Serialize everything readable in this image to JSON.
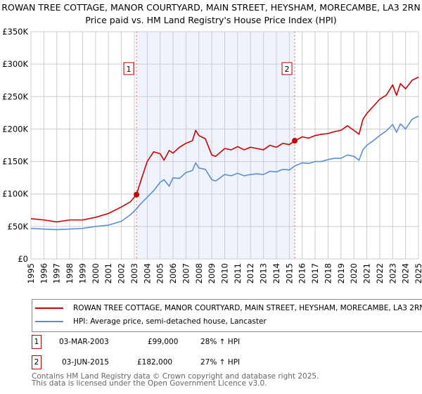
{
  "title": "ROWAN TREE COTTAGE, MANOR COURTYARD, MAIN STREET, HEYSHAM, MORECAMBE, LA3 2RN",
  "subtitle": "Price paid vs. HM Land Registry's House Price Index (HPI)",
  "chart_data": {
    "type": "line",
    "ylim": [
      0,
      350000
    ],
    "xlim": [
      1995,
      2025
    ],
    "yticks": [
      {
        "v": 0,
        "l": "£0"
      },
      {
        "v": 50000,
        "l": "£50K"
      },
      {
        "v": 100000,
        "l": "£100K"
      },
      {
        "v": 150000,
        "l": "£150K"
      },
      {
        "v": 200000,
        "l": "£200K"
      },
      {
        "v": 250000,
        "l": "£250K"
      },
      {
        "v": 300000,
        "l": "£300K"
      },
      {
        "v": 350000,
        "l": "£350K"
      }
    ],
    "xticks": [
      "1995",
      "1996",
      "1997",
      "1998",
      "1999",
      "2000",
      "2001",
      "2002",
      "2003",
      "2004",
      "2005",
      "2006",
      "2007",
      "2008",
      "2009",
      "2010",
      "2011",
      "2012",
      "2013",
      "2014",
      "2015",
      "2016",
      "2017",
      "2018",
      "2019",
      "2020",
      "2021",
      "2022",
      "2023",
      "2024",
      "2025"
    ],
    "grid": true,
    "series": [
      {
        "name": "ROWAN TREE COTTAGE, MANOR COURTYARD, MAIN STREET, HEYSHAM, MORECAMBE, LA3 2RN",
        "color": "#cc0000",
        "x": [
          1995,
          1996,
          1997,
          1998,
          1999,
          2000,
          2001,
          2002,
          2002.7,
          2003.17,
          2003.5,
          2004,
          2004.5,
          2005,
          2005.3,
          2005.7,
          2006,
          2006.5,
          2007,
          2007.5,
          2007.75,
          2008,
          2008.5,
          2009,
          2009.3,
          2010,
          2010.5,
          2011,
          2011.5,
          2012,
          2012.5,
          2013,
          2013.5,
          2014,
          2014.5,
          2015,
          2015.42,
          2016,
          2016.5,
          2017,
          2017.5,
          2018,
          2018.5,
          2019,
          2019.5,
          2020,
          2020.4,
          2020.7,
          2021,
          2021.5,
          2022,
          2022.5,
          2023,
          2023.3,
          2023.6,
          2024,
          2024.5,
          2025
        ],
        "y": [
          62000,
          60000,
          57000,
          60000,
          60000,
          64000,
          70000,
          80000,
          88000,
          99000,
          120000,
          150000,
          165000,
          162000,
          152000,
          167000,
          163000,
          172000,
          178000,
          182000,
          198000,
          190000,
          185000,
          160000,
          158000,
          170000,
          168000,
          173000,
          168000,
          172000,
          170000,
          168000,
          175000,
          172000,
          178000,
          176000,
          182000,
          188000,
          186000,
          190000,
          192000,
          193000,
          196000,
          198000,
          205000,
          198000,
          192000,
          215000,
          224000,
          235000,
          246000,
          252000,
          268000,
          252000,
          270000,
          262000,
          275000,
          280000
        ]
      },
      {
        "name": "HPI: Average price, semi-detached house, Lancaster",
        "color": "#5b8fd0",
        "x": [
          1995,
          1996,
          1997,
          1998,
          1999,
          2000,
          2001,
          2002,
          2002.7,
          2003.17,
          2003.5,
          2004,
          2004.5,
          2005,
          2005.3,
          2005.7,
          2006,
          2006.5,
          2007,
          2007.5,
          2007.75,
          2008,
          2008.5,
          2009,
          2009.3,
          2010,
          2010.5,
          2011,
          2011.5,
          2012,
          2012.5,
          2013,
          2013.5,
          2014,
          2014.5,
          2015,
          2015.42,
          2016,
          2016.5,
          2017,
          2017.5,
          2018,
          2018.5,
          2019,
          2019.5,
          2020,
          2020.4,
          2020.7,
          2021,
          2021.5,
          2022,
          2022.5,
          2023,
          2023.3,
          2023.6,
          2024,
          2024.5,
          2025
        ],
        "y": [
          47000,
          46000,
          45000,
          46000,
          47000,
          50000,
          52000,
          58000,
          68000,
          77000,
          85000,
          95000,
          105000,
          118000,
          122000,
          112000,
          125000,
          124000,
          133000,
          136000,
          148000,
          140000,
          138000,
          122000,
          120000,
          130000,
          128000,
          132000,
          128000,
          130000,
          131000,
          130000,
          135000,
          134000,
          138000,
          137000,
          143000,
          148000,
          147000,
          150000,
          150000,
          153000,
          155000,
          155000,
          160000,
          158000,
          152000,
          168000,
          175000,
          182000,
          190000,
          197000,
          207000,
          195000,
          208000,
          200000,
          215000,
          220000
        ]
      }
    ],
    "shaded_range": [
      2003.17,
      2015.42
    ],
    "annotations": [
      {
        "label": "1",
        "x": 2003.17,
        "y": 99000
      },
      {
        "label": "2",
        "x": 2015.42,
        "y": 182000
      }
    ]
  },
  "legend": [
    {
      "label": "ROWAN TREE COTTAGE, MANOR COURTYARD, MAIN STREET, HEYSHAM, MORECAMBE, LA3 2RN",
      "color": "#cc0000"
    },
    {
      "label": "HPI: Average price, semi-detached house, Lancaster",
      "color": "#5b8fd0"
    }
  ],
  "transactions": [
    {
      "num": "1",
      "date": "03-MAR-2003",
      "price": "£99,000",
      "hpi": "28% ↑ HPI"
    },
    {
      "num": "2",
      "date": "03-JUN-2015",
      "price": "£182,000",
      "hpi": "27% ↑ HPI"
    }
  ],
  "footer": [
    "Contains HM Land Registry data © Crown copyright and database right 2025.",
    "This data is licensed under the Open Government Licence v3.0."
  ]
}
